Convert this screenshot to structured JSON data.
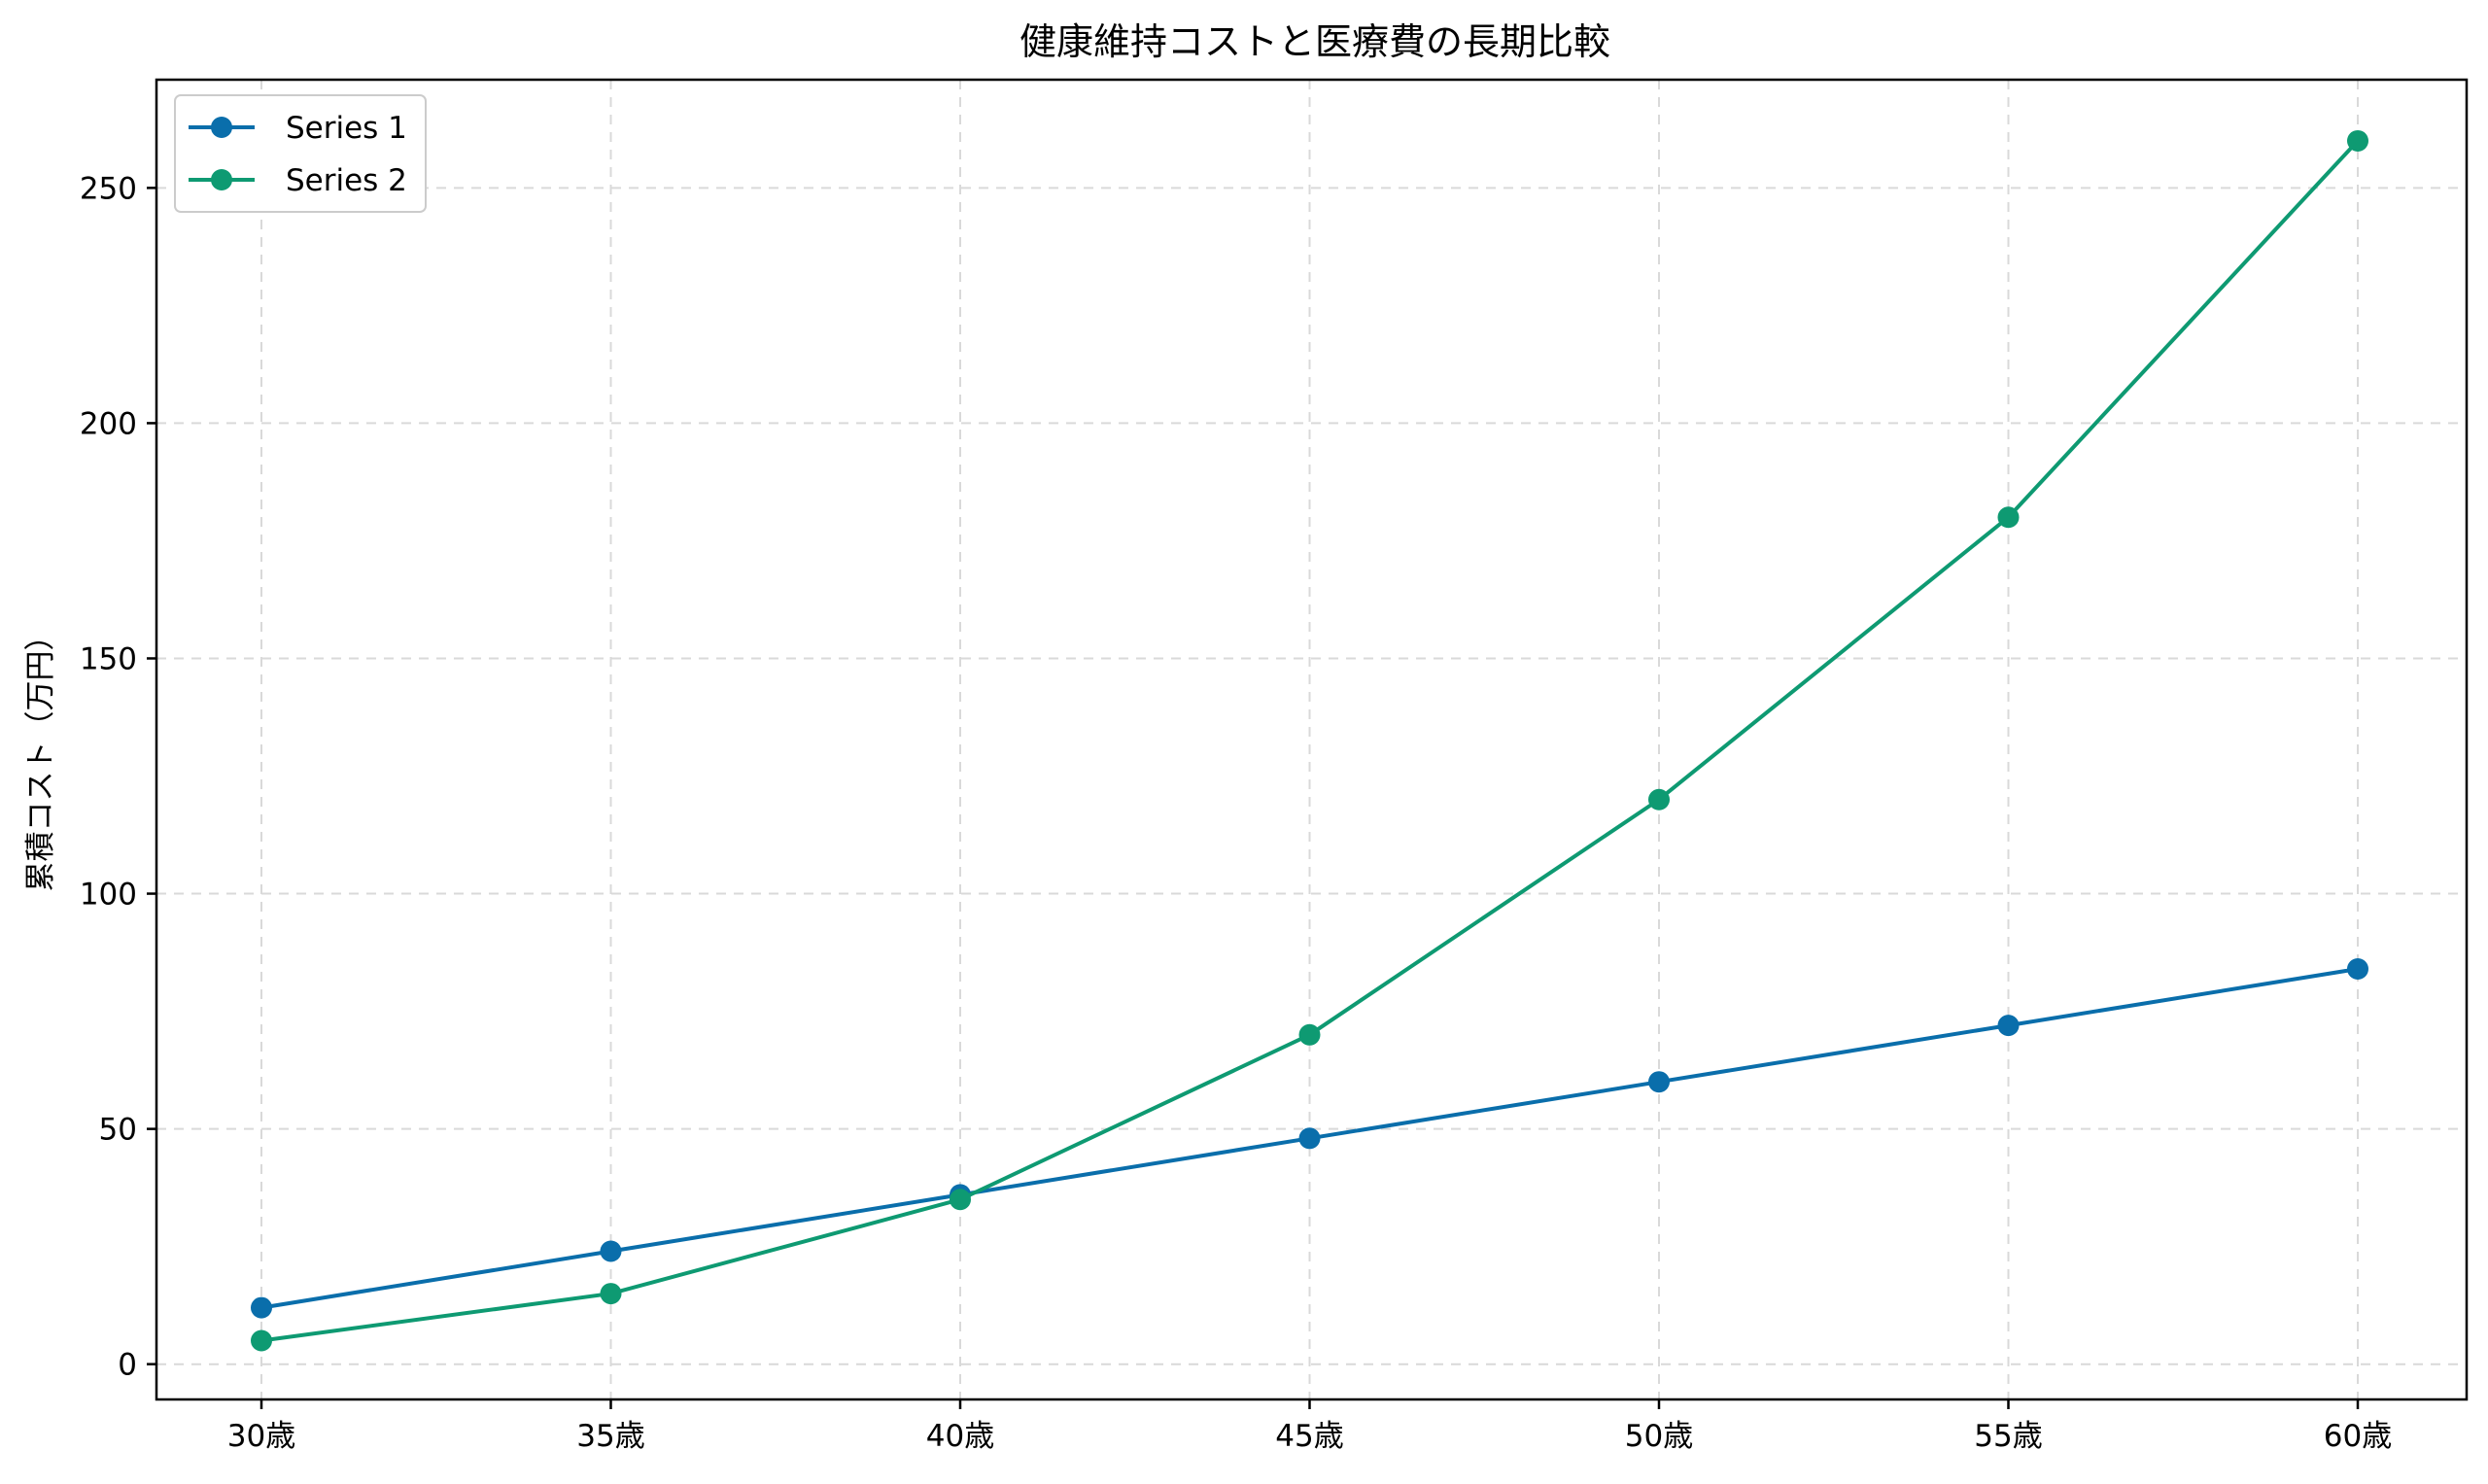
{
  "chart_data": {
    "type": "line",
    "title": "健康維持コストと医療費の長期比較",
    "xlabel": "",
    "ylabel": "累積コスト（万円）",
    "categories": [
      "30歳",
      "35歳",
      "40歳",
      "45歳",
      "50歳",
      "55歳",
      "60歳"
    ],
    "series": [
      {
        "name": "Series 1",
        "color": "#0a6eab",
        "values": [
          12,
          24,
          36,
          48,
          60,
          72,
          84
        ]
      },
      {
        "name": "Series 2",
        "color": "#0e9a72",
        "values": [
          5,
          15,
          35,
          70,
          120,
          180,
          260
        ]
      }
    ],
    "ylim": [
      -7.5,
      273
    ],
    "yticks": [
      0,
      50,
      100,
      150,
      200,
      250
    ],
    "grid": true,
    "legend_position": "top-left"
  }
}
